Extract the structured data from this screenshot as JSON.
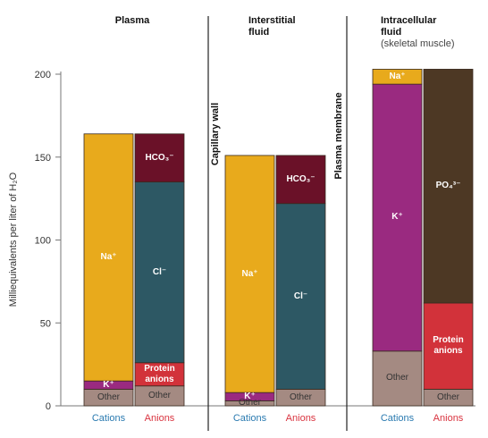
{
  "chart_data": {
    "type": "stacked-bar",
    "y_label": "Milliequivalents per liter of H₂O",
    "ylim": [
      0,
      200
    ],
    "yticks": [
      0,
      50,
      100,
      150,
      200
    ],
    "dividers": [
      "Capillary wall",
      "Plasma membrane"
    ],
    "panels": [
      {
        "title": [
          "Plasma"
        ],
        "columns": [
          {
            "name": "Cations",
            "color": "#2a7ab0",
            "segments": [
              {
                "name": "Other",
                "color": "#a48a82",
                "value": 10
              },
              {
                "name": "K⁺",
                "color": "#9a2a80",
                "value": 5
              },
              {
                "name": "Na⁺",
                "color": "#e8aa1c",
                "value": 149
              }
            ]
          },
          {
            "name": "Anions",
            "color": "#d9333f",
            "segments": [
              {
                "name": "Other",
                "color": "#a48a82",
                "value": 12
              },
              {
                "name": "Protein anions",
                "color": "#d2323a",
                "value": 14
              },
              {
                "name": "Cl⁻",
                "color": "#2d5864",
                "value": 109
              },
              {
                "name": "HCO₃⁻",
                "color": "#6a1128",
                "value": 29
              }
            ]
          }
        ]
      },
      {
        "title": [
          "Interstitial",
          "fluid"
        ],
        "columns": [
          {
            "name": "Cations",
            "color": "#2a7ab0",
            "segments": [
              {
                "name": "Other",
                "color": "#a48a82",
                "value": 3
              },
              {
                "name": "K⁺",
                "color": "#9a2a80",
                "value": 5
              },
              {
                "name": "Na⁺",
                "color": "#e8aa1c",
                "value": 143
              }
            ]
          },
          {
            "name": "Anions",
            "color": "#d9333f",
            "segments": [
              {
                "name": "Other",
                "color": "#a48a82",
                "value": 10
              },
              {
                "name": "Cl⁻",
                "color": "#2d5864",
                "value": 112
              },
              {
                "name": "HCO₃⁻",
                "color": "#6a1128",
                "value": 29
              }
            ]
          }
        ]
      },
      {
        "title": [
          "Intracellular",
          "fluid"
        ],
        "subtitle": "(skeletal muscle)",
        "columns": [
          {
            "name": "Cations",
            "color": "#2a7ab0",
            "segments": [
              {
                "name": "Other",
                "color": "#a48a82",
                "value": 33
              },
              {
                "name": "K⁺",
                "color": "#9a2a80",
                "value": 161
              },
              {
                "name": "Na⁺",
                "color": "#e8aa1c",
                "value": 9
              }
            ]
          },
          {
            "name": "Anions",
            "color": "#d9333f",
            "segments": [
              {
                "name": "Other",
                "color": "#a48a82",
                "value": 10
              },
              {
                "name": "Protein anions",
                "color": "#d2323a",
                "value": 52
              },
              {
                "name": "PO₄³⁻",
                "color": "#4d3824",
                "value": 141
              }
            ]
          }
        ]
      }
    ]
  }
}
